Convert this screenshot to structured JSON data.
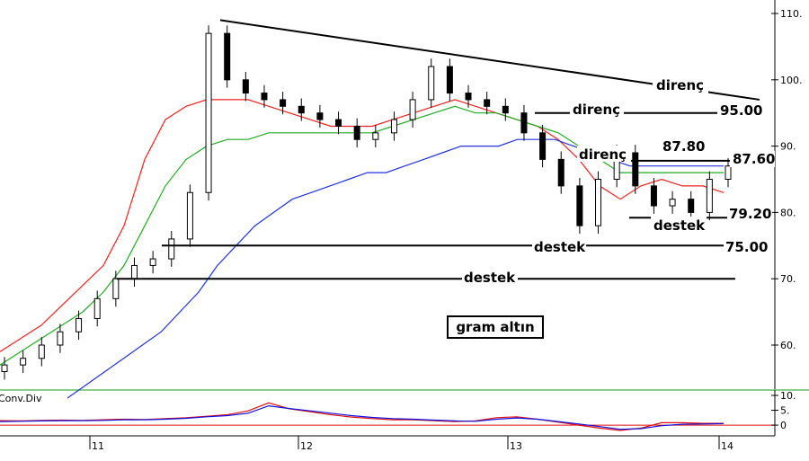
{
  "chart_data": {
    "type": "candlestick",
    "title": "gram altın",
    "y_axis": {
      "min": 55,
      "max": 110,
      "ticks": [
        "110.",
        "100.",
        "90.",
        "80.",
        "70.",
        "60."
      ]
    },
    "x_axis": {
      "ticks": [
        "11",
        "12",
        "13",
        "14"
      ]
    },
    "indicator": {
      "label": "Conv.Div",
      "ticks": [
        "10.",
        "5.",
        "0"
      ],
      "y_min": -3,
      "y_max": 10,
      "lines": [
        {
          "name": "",
          "color": "#e01010",
          "values": [
            1.5,
            1.4,
            1.6,
            1.7,
            1.6,
            1.8,
            2.0,
            1.9,
            2.2,
            2.5,
            3.0,
            3.5,
            4.8,
            7.5,
            5.5,
            4.5,
            3.5,
            2.7,
            2.2,
            1.8,
            1.8,
            1.5,
            1.2,
            1.4,
            2.5,
            2.8,
            2.0,
            1.0,
            0.0,
            -1.0,
            -1.8,
            -1.0,
            0.8,
            0.8,
            0.6,
            0.6
          ]
        },
        {
          "name": "",
          "color": "#1010e0",
          "values": [
            1.2,
            1.3,
            1.4,
            1.5,
            1.5,
            1.6,
            1.8,
            1.8,
            2.0,
            2.3,
            2.8,
            3.2,
            4.0,
            6.5,
            5.6,
            4.8,
            4.0,
            3.2,
            2.6,
            2.2,
            2.0,
            1.7,
            1.4,
            1.3,
            2.0,
            2.4,
            2.0,
            1.2,
            0.4,
            -0.5,
            -1.4,
            -1.2,
            -0.2,
            0.3,
            0.4,
            0.5
          ]
        }
      ]
    },
    "moving_averages": [
      {
        "name": "",
        "color": "#ee2222",
        "values": [
          59,
          61,
          63,
          66,
          69,
          72,
          78,
          88,
          94,
          96,
          97,
          97,
          97,
          96,
          95,
          94,
          93,
          93,
          93,
          94,
          95,
          96,
          97,
          96,
          95,
          94,
          93,
          91,
          88,
          84,
          82,
          84,
          85,
          84,
          84,
          83
        ]
      },
      {
        "name": "",
        "color": "#22aa22",
        "values": [
          57,
          59,
          61,
          63,
          65,
          68,
          72,
          78,
          84,
          88,
          90,
          91,
          91,
          92,
          92,
          92,
          92,
          92,
          92,
          93,
          94,
          95,
          96,
          95,
          95,
          94,
          93,
          92,
          90,
          88,
          86,
          86,
          86,
          86,
          86,
          86
        ]
      },
      {
        "name": "",
        "color": "#2233dd",
        "values": [
          52,
          54,
          56,
          58,
          60,
          62,
          65,
          68,
          72,
          75,
          78,
          80,
          82,
          83,
          84,
          85,
          86,
          86,
          87,
          88,
          89,
          90,
          90,
          90,
          91,
          91,
          91,
          90,
          89,
          88,
          87,
          87,
          87,
          87,
          87,
          87
        ]
      }
    ],
    "candles_close": [
      57,
      58,
      60,
      62,
      64,
      67,
      70,
      72,
      73,
      76,
      83,
      107,
      100,
      98,
      97,
      96,
      95,
      94,
      93,
      91,
      92,
      94,
      97,
      102,
      98,
      97,
      96,
      95,
      92,
      88,
      84,
      78,
      85,
      89,
      84,
      81,
      82,
      80,
      85,
      87
    ],
    "levels": [
      {
        "name": "direnç",
        "value": 97.0
      },
      {
        "name": "direnç",
        "value": 95.0,
        "label": "95.00"
      },
      {
        "name": "direnç",
        "value": 87.8,
        "label": "87.80"
      },
      {
        "name": "direnç",
        "value": 87.6,
        "label": "87.60"
      },
      {
        "name": "destek",
        "value": 79.2,
        "label": "79.20"
      },
      {
        "name": "destek",
        "value": 75.0,
        "label": "75.00"
      },
      {
        "name": "destek",
        "value": 70.0
      }
    ],
    "annotations": {
      "direnc_top": "direnç",
      "direnc_mid": "direnç",
      "direnc_low": "direnç",
      "destek_79": "destek",
      "destek_75": "destek",
      "destek_70": "destek",
      "val_95": "95.00",
      "val_8780": "87.80",
      "val_8760": "87.60",
      "val_7920": "79.20",
      "val_75": "75.00"
    },
    "trendline": {
      "name": "direnç",
      "from": 109,
      "to": 97
    }
  }
}
